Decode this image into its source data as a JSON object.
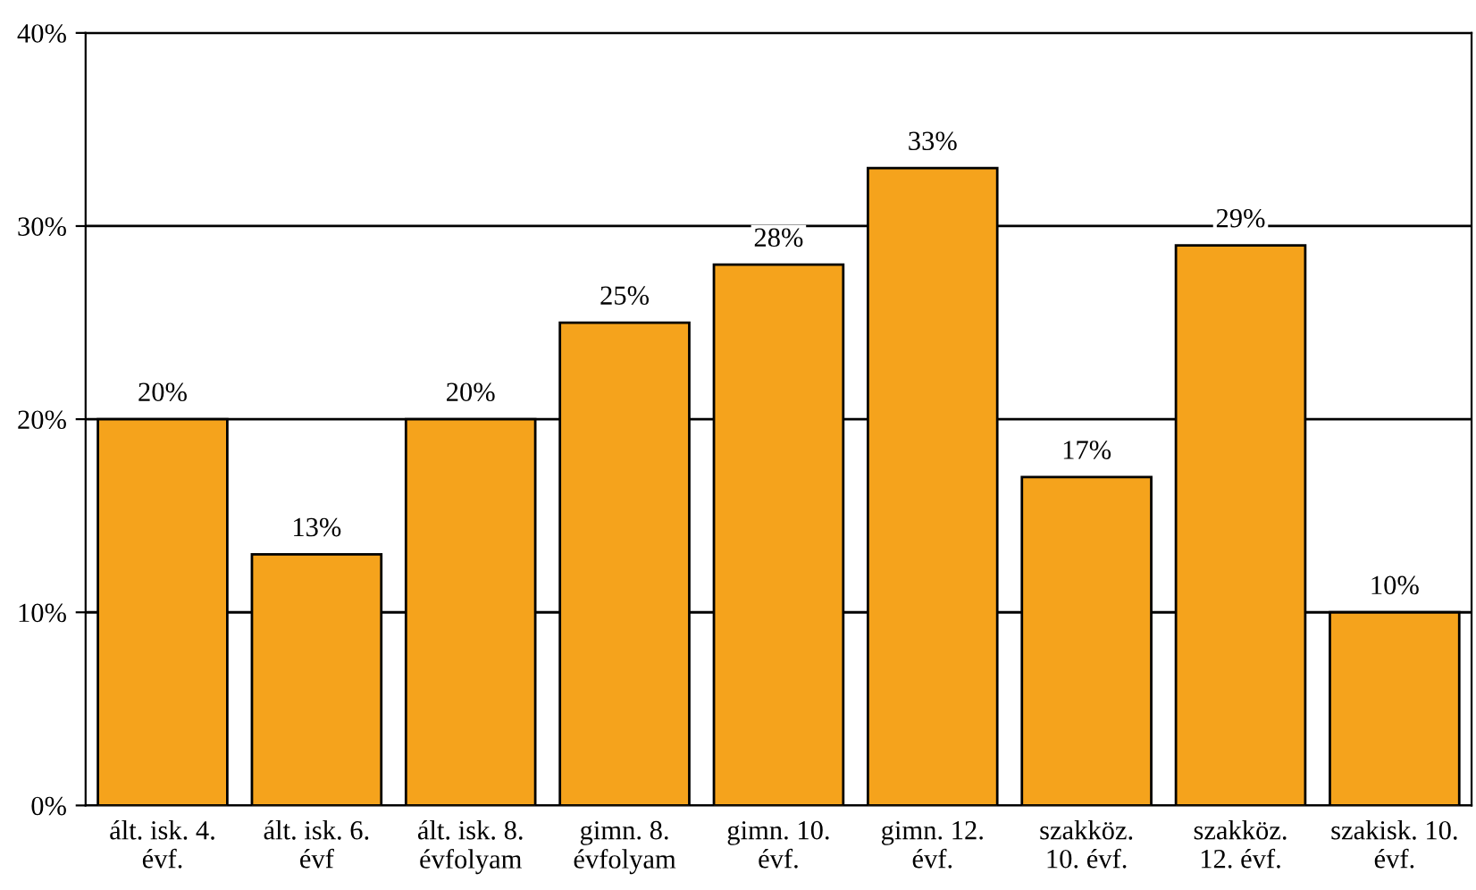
{
  "chart_data": {
    "type": "bar",
    "categories": [
      "ált. isk. 4.\névf.",
      "ált. isk. 6.\névf",
      "ált. isk. 8.\névfolyam",
      "gimn. 8.\névfolyam",
      "gimn. 10.\névf.",
      "gimn. 12.\névf.",
      "szakköz.\n10. évf.",
      "szakköz.\n12. évf.",
      "szakisk. 10.\névf."
    ],
    "values": [
      20,
      13,
      20,
      25,
      28,
      33,
      17,
      29,
      10
    ],
    "value_labels": [
      "20%",
      "13%",
      "20%",
      "25%",
      "28%",
      "33%",
      "17%",
      "29%",
      "10%"
    ],
    "color": "#f5a31c",
    "ylim": [
      0,
      40
    ],
    "yticks": [
      {
        "value": 0,
        "label": "0%"
      },
      {
        "value": 10,
        "label": "10%"
      },
      {
        "value": 20,
        "label": "20%"
      },
      {
        "value": 30,
        "label": "30%"
      },
      {
        "value": 40,
        "label": "40%"
      }
    ],
    "grid": "y"
  }
}
